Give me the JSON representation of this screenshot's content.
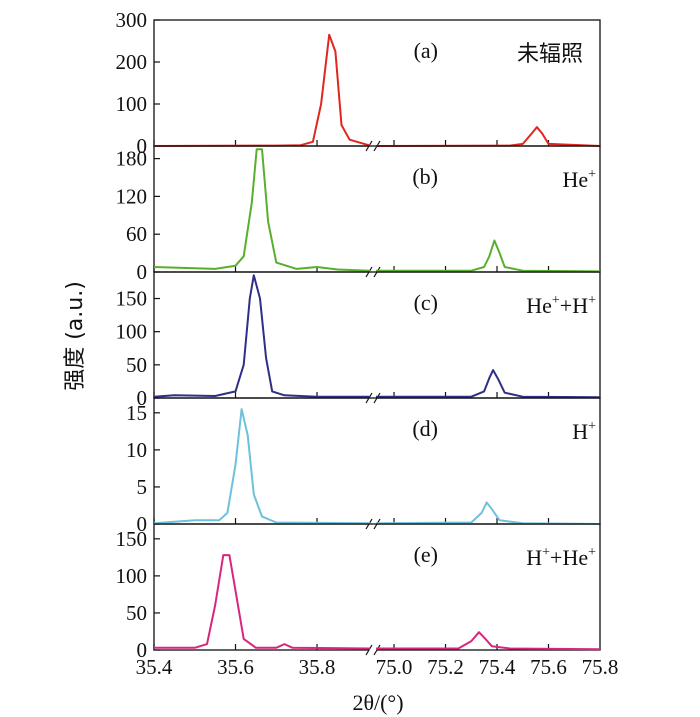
{
  "chart_data": {
    "type": "line",
    "xlabel": "2θ/(°)",
    "ylabel": "强度 (a.u.)",
    "x_ticks": [
      "35.4",
      "35.6",
      "35.8",
      "75.0",
      "75.2",
      "75.4",
      "75.6",
      "75.8"
    ],
    "x_segments": [
      {
        "range": [
          35.4,
          35.93
        ]
      },
      {
        "range": [
          74.93,
          75.8
        ]
      }
    ],
    "panels": [
      {
        "letter": "(a)",
        "sample": "未辐照",
        "color": "#e0261f",
        "ylim": [
          0,
          300
        ],
        "yticks": [
          0,
          100,
          200,
          300
        ],
        "segments": [
          [
            [
              35.4,
              0
            ],
            [
              35.7,
              1
            ],
            [
              35.76,
              2
            ],
            [
              35.79,
              10
            ],
            [
              35.81,
              100
            ],
            [
              35.83,
              265
            ],
            [
              35.845,
              225
            ],
            [
              35.86,
              50
            ],
            [
              35.88,
              15
            ],
            [
              35.93,
              1
            ]
          ],
          [
            [
              74.93,
              0
            ],
            [
              75.45,
              1
            ],
            [
              75.5,
              5
            ],
            [
              75.535,
              30
            ],
            [
              75.555,
              45
            ],
            [
              75.575,
              30
            ],
            [
              75.6,
              5
            ],
            [
              75.8,
              0
            ]
          ]
        ]
      },
      {
        "letter": "(b)",
        "sample_base": "He",
        "sample_sup": "+",
        "color": "#5aae2e",
        "ylim": [
          0,
          200
        ],
        "yticks": [
          0,
          60,
          120,
          180
        ],
        "segments": [
          [
            [
              35.4,
              8
            ],
            [
              35.55,
              5
            ],
            [
              35.6,
              10
            ],
            [
              35.62,
              25
            ],
            [
              35.64,
              110
            ],
            [
              35.652,
              195
            ],
            [
              35.665,
              195
            ],
            [
              35.68,
              80
            ],
            [
              35.7,
              15
            ],
            [
              35.75,
              5
            ],
            [
              35.8,
              8
            ],
            [
              35.85,
              4
            ],
            [
              35.93,
              2
            ]
          ],
          [
            [
              74.93,
              2
            ],
            [
              75.3,
              2
            ],
            [
              75.35,
              8
            ],
            [
              75.37,
              25
            ],
            [
              75.39,
              50
            ],
            [
              75.41,
              30
            ],
            [
              75.43,
              8
            ],
            [
              75.5,
              2
            ],
            [
              75.8,
              1
            ]
          ]
        ]
      },
      {
        "letter": "(c)",
        "sample_base": "He",
        "sample_sup": "+",
        "sample_mid": "+H",
        "sample_sup2": "+",
        "color": "#2e2f86",
        "ylim": [
          0,
          190
        ],
        "yticks": [
          0,
          50,
          100,
          150
        ],
        "segments": [
          [
            [
              35.4,
              2
            ],
            [
              35.45,
              4
            ],
            [
              35.55,
              3
            ],
            [
              35.6,
              10
            ],
            [
              35.62,
              50
            ],
            [
              35.635,
              150
            ],
            [
              35.645,
              185
            ],
            [
              35.66,
              150
            ],
            [
              35.675,
              60
            ],
            [
              35.69,
              10
            ],
            [
              35.72,
              4
            ],
            [
              35.8,
              2
            ],
            [
              35.93,
              2
            ]
          ],
          [
            [
              74.93,
              2
            ],
            [
              75.3,
              2
            ],
            [
              75.35,
              10
            ],
            [
              75.37,
              30
            ],
            [
              75.385,
              42
            ],
            [
              75.405,
              28
            ],
            [
              75.43,
              8
            ],
            [
              75.5,
              2
            ],
            [
              75.8,
              1
            ]
          ]
        ]
      },
      {
        "letter": "(d)",
        "sample_base": "H",
        "sample_sup": "+",
        "color": "#6ec1dc",
        "ylim": [
          0,
          17
        ],
        "yticks": [
          0,
          5,
          10,
          15
        ],
        "segments": [
          [
            [
              35.4,
              0.1
            ],
            [
              35.5,
              0.5
            ],
            [
              35.56,
              0.5
            ],
            [
              35.58,
              1.5
            ],
            [
              35.6,
              8
            ],
            [
              35.615,
              15.5
            ],
            [
              35.63,
              12
            ],
            [
              35.645,
              4
            ],
            [
              35.665,
              1
            ],
            [
              35.7,
              0.2
            ],
            [
              35.93,
              0.1
            ]
          ],
          [
            [
              74.93,
              0.1
            ],
            [
              75.3,
              0.2
            ],
            [
              75.34,
              1.5
            ],
            [
              75.36,
              2.9
            ],
            [
              75.38,
              2
            ],
            [
              75.41,
              0.5
            ],
            [
              75.5,
              0.1
            ],
            [
              75.8,
              0
            ]
          ]
        ]
      },
      {
        "letter": "(e)",
        "sample_base": "H",
        "sample_sup": "+",
        "sample_mid": "+He",
        "sample_sup2": "+",
        "color": "#d8257e",
        "ylim": [
          0,
          170
        ],
        "yticks": [
          0,
          50,
          100,
          150
        ],
        "segments": [
          [
            [
              35.4,
              3
            ],
            [
              35.5,
              3
            ],
            [
              35.53,
              8
            ],
            [
              35.55,
              60
            ],
            [
              35.57,
              128
            ],
            [
              35.585,
              128
            ],
            [
              35.6,
              80
            ],
            [
              35.62,
              15
            ],
            [
              35.65,
              3
            ],
            [
              35.7,
              3
            ],
            [
              35.72,
              8
            ],
            [
              35.74,
              3
            ],
            [
              35.93,
              2
            ]
          ],
          [
            [
              74.93,
              2
            ],
            [
              75.25,
              2
            ],
            [
              75.3,
              12
            ],
            [
              75.33,
              24
            ],
            [
              75.355,
              15
            ],
            [
              75.38,
              5
            ],
            [
              75.45,
              2
            ],
            [
              75.8,
              1
            ]
          ]
        ]
      }
    ]
  }
}
